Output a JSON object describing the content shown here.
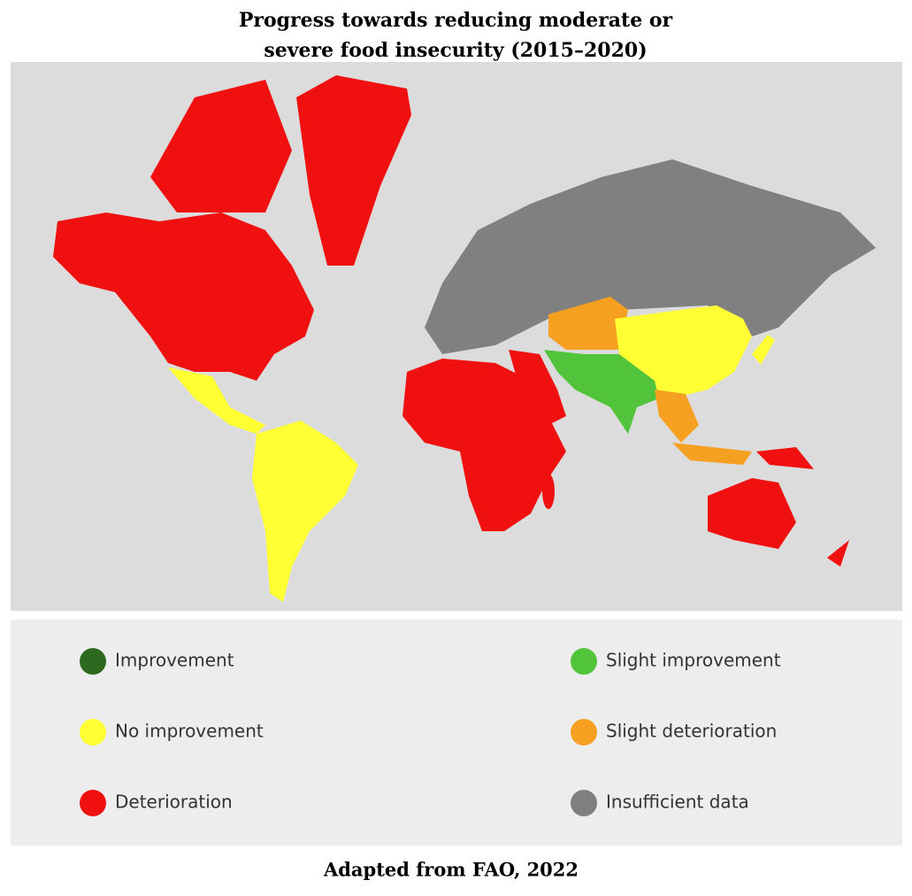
{
  "header": {
    "title_lines": [
      "Progress towards reducing moderate or",
      "severe food insecurity (2015–2020)"
    ]
  },
  "legend": [
    {
      "label": "Improvement",
      "color": "#2d6a1f"
    },
    {
      "label": "Slight improvement",
      "color": "#52c43c"
    },
    {
      "label": "No improvement",
      "color": "#ffff33"
    },
    {
      "label": "Slight deterioration",
      "color": "#f5a020"
    },
    {
      "label": "Deterioration",
      "color": "#f01010"
    },
    {
      "label": "Insufficient data",
      "color": "#808080"
    }
  ],
  "source": "Adapted from FAO, 2022"
}
